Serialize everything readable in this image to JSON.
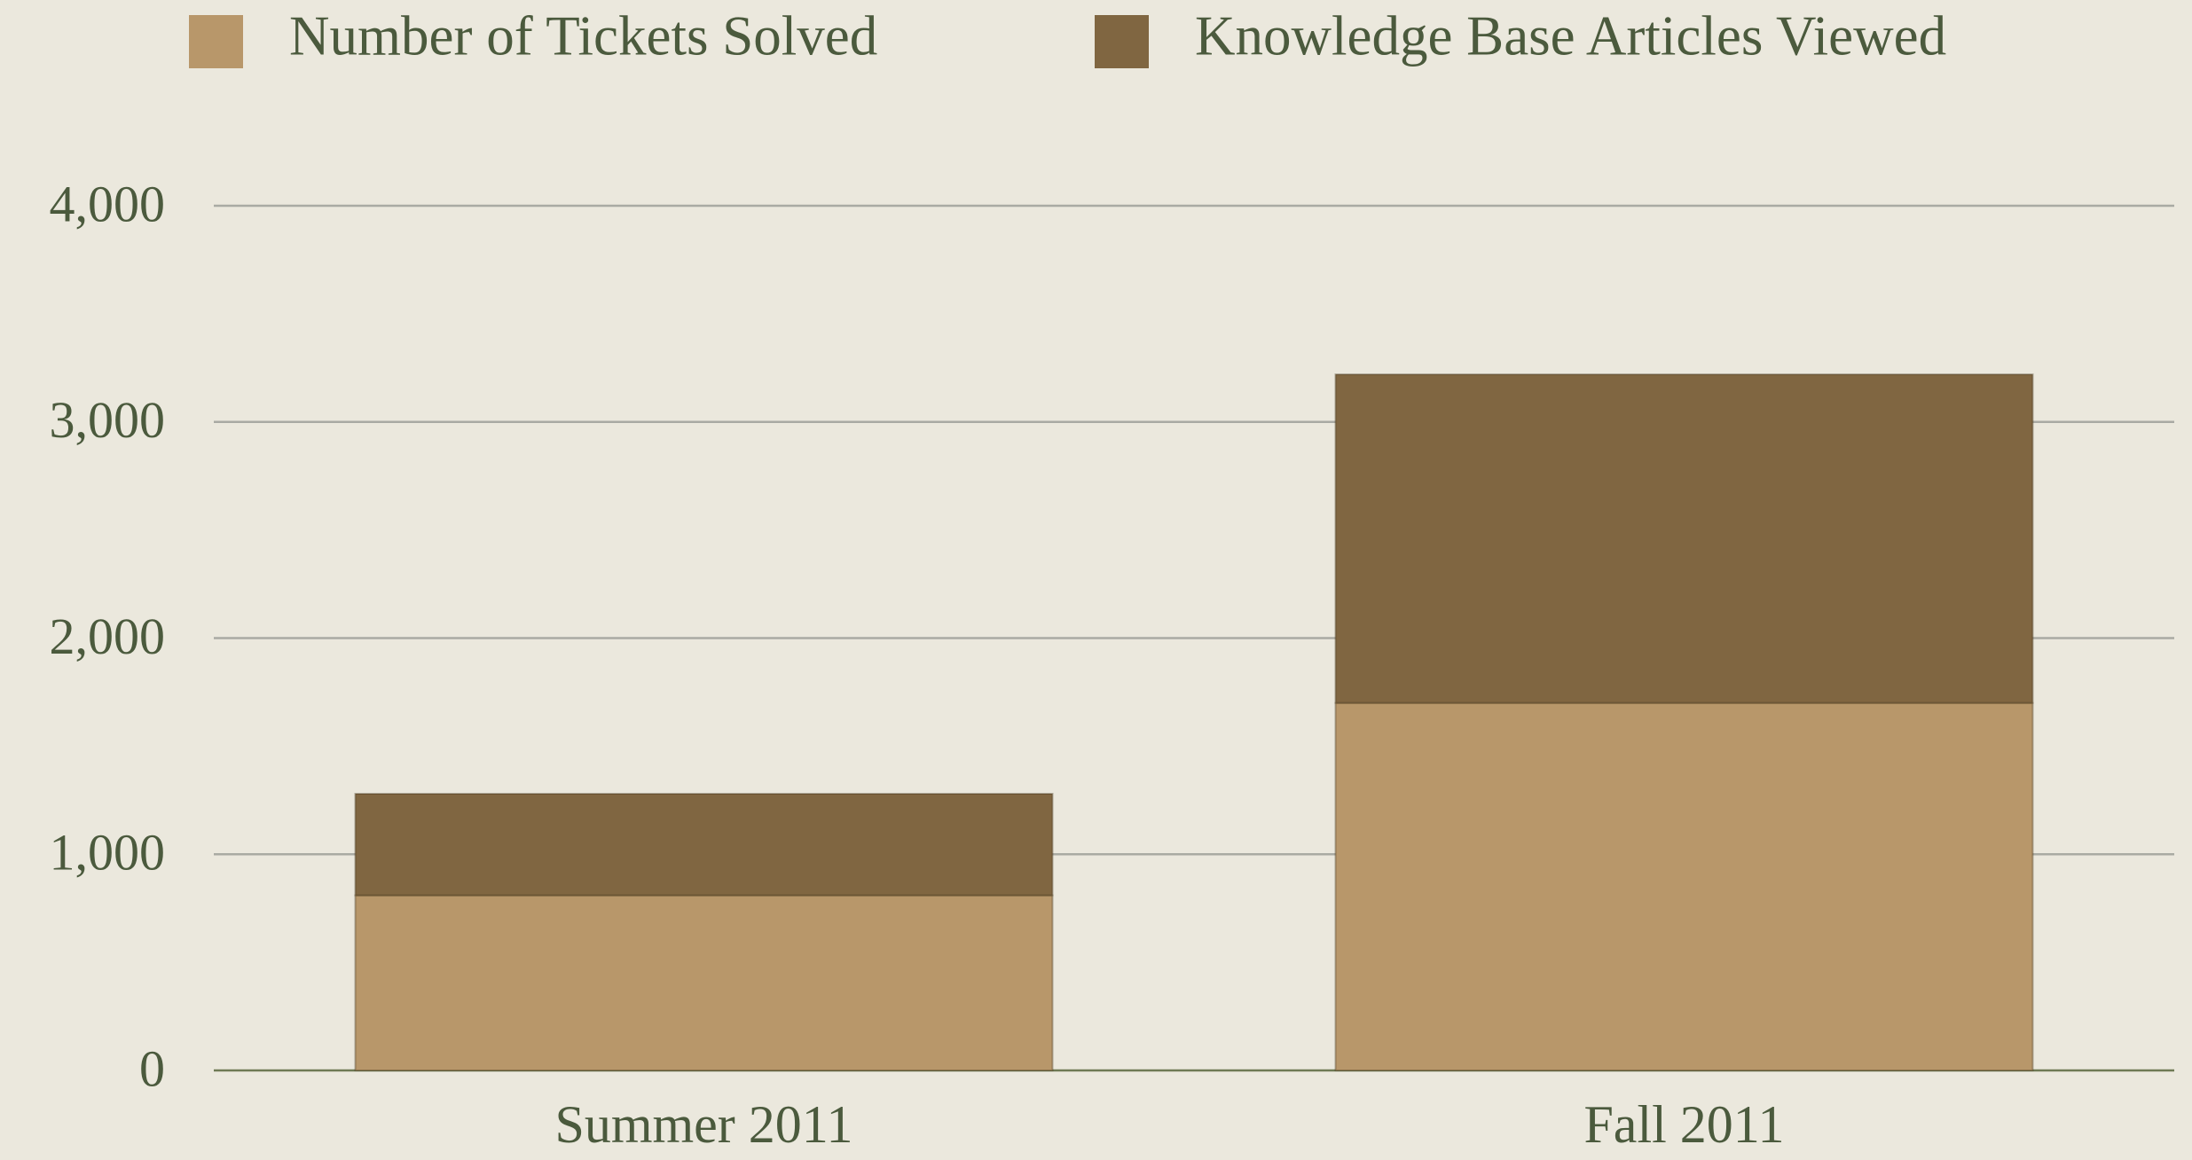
{
  "chart_data": {
    "type": "stacked_bar",
    "categories": [
      "Summer 2011",
      "Fall 2011"
    ],
    "series": [
      {
        "name": "Number of Tickets Solved",
        "color": "#b8976a",
        "values": [
          810,
          1700
        ]
      },
      {
        "name": "Knowledge Base Articles Viewed",
        "color": "#806641",
        "values": [
          470,
          1520
        ]
      }
    ],
    "ylim": [
      0,
      4000
    ],
    "yticks": [
      0,
      {
        "value": 1000,
        "label": "1,000"
      },
      {
        "value": 2000,
        "label": "2,000"
      },
      {
        "value": 3000,
        "label": "3,000"
      },
      {
        "value": 4000,
        "label": "4,000"
      }
    ],
    "grid": true,
    "legend": "top"
  }
}
